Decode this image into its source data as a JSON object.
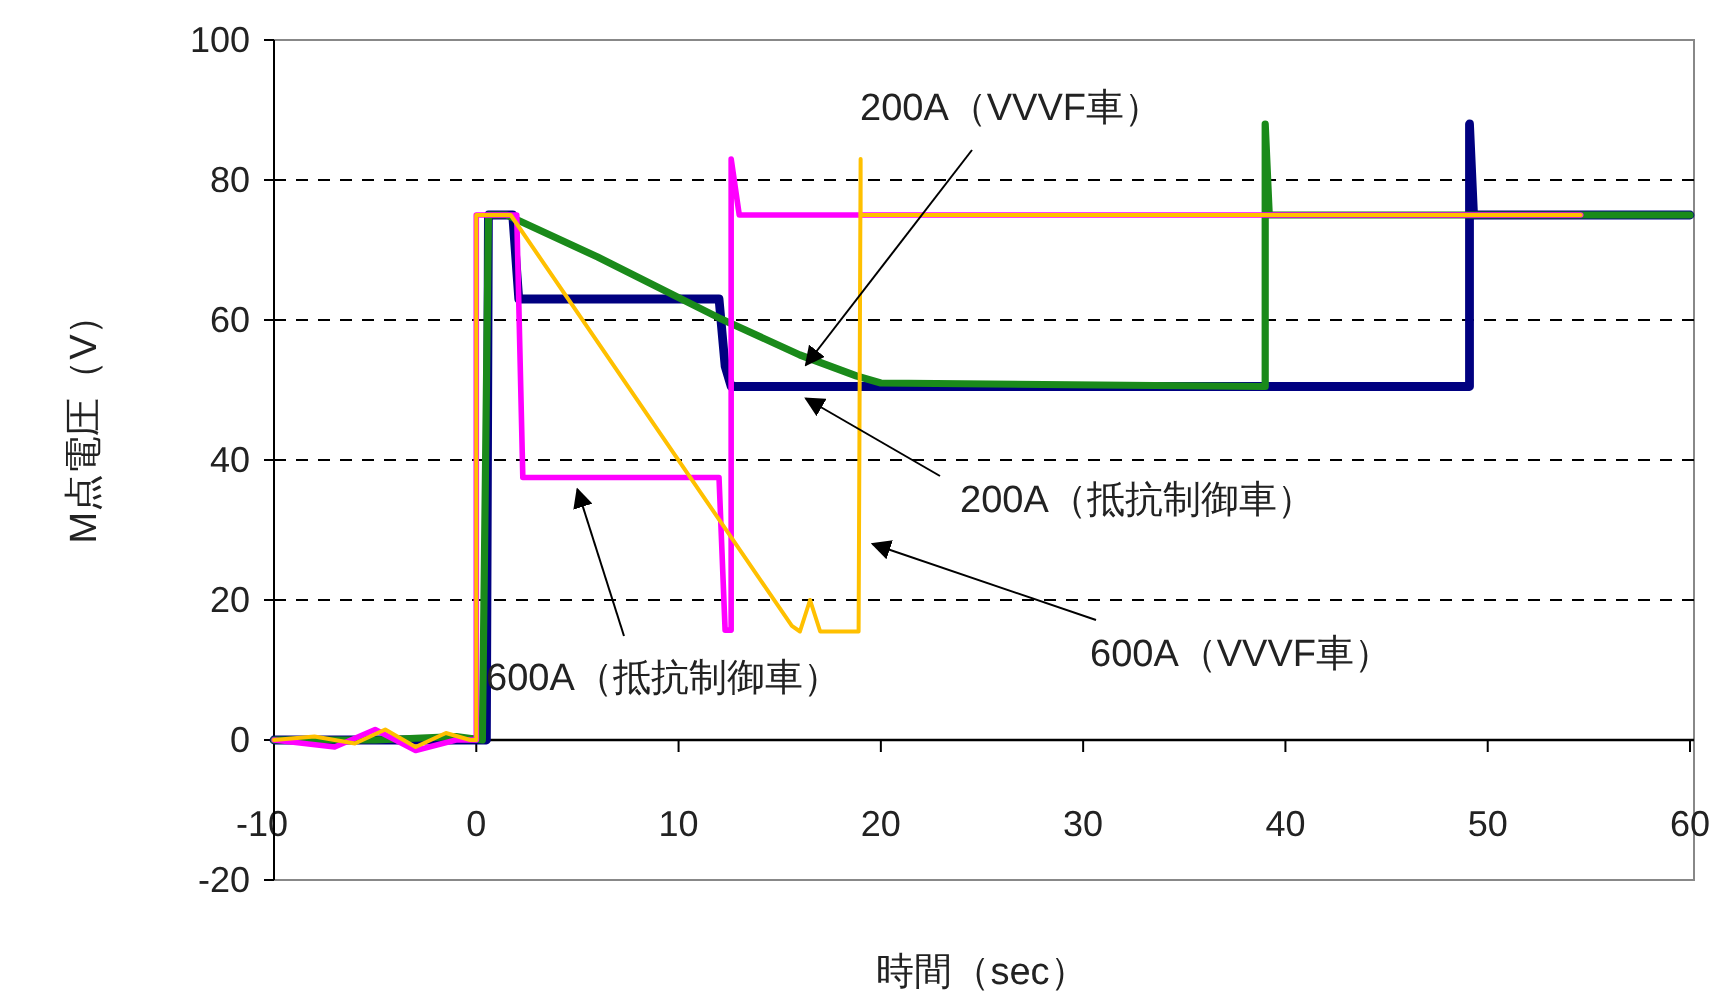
{
  "chart_data": {
    "type": "line",
    "xlabel": "時間（sec）",
    "ylabel": "M点電圧（V）",
    "xlim": [
      -10,
      60
    ],
    "ylim": [
      -20,
      100
    ],
    "xticks": [
      -10,
      0,
      10,
      20,
      30,
      40,
      50,
      60
    ],
    "yticks": [
      -20,
      0,
      20,
      40,
      60,
      80,
      100
    ],
    "grid": "y",
    "series": [
      {
        "color": "#000080",
        "x": [
          -10,
          0.5,
          0.6,
          1.8,
          2.1,
          12,
          12.3,
          12.6,
          13,
          49.1,
          49.1,
          49.3,
          60
        ],
        "values": [
          0,
          0,
          75,
          75,
          63,
          63,
          53.4,
          50.5,
          50.5,
          50.5,
          88,
          75,
          75
        ]
      },
      {
        "color": "#1a8a1a",
        "x": [
          -10,
          -5,
          -1,
          0.3,
          0.6,
          1.5,
          6,
          12,
          16,
          18.8,
          20,
          39,
          39,
          39.2,
          60
        ],
        "values": [
          0,
          0,
          0.5,
          0,
          75,
          75,
          69,
          60.3,
          55,
          52,
          51,
          50.5,
          88,
          75,
          75
        ]
      },
      {
        "color": "#ff00ff",
        "x": [
          -10,
          -7,
          -5,
          -3,
          -1,
          0,
          0,
          2,
          2.3,
          12,
          12.3,
          12.6,
          12.6,
          13,
          54.6
        ],
        "values": [
          0,
          -1,
          1.5,
          -1.5,
          0,
          0,
          75,
          75,
          37.5,
          37.5,
          15.7,
          15.7,
          83,
          75,
          75
        ]
      },
      {
        "color": "#ffc000",
        "x": [
          -10,
          -8,
          -6,
          -4.5,
          -3,
          -1.5,
          -0.3,
          0,
          0,
          1.7,
          15.6,
          16,
          16.5,
          17,
          18.9,
          19,
          19,
          19.5,
          54.6
        ],
        "values": [
          0,
          0.5,
          -0.5,
          1.5,
          -1,
          1,
          0,
          0,
          75,
          75,
          16.3,
          15.5,
          20,
          15.5,
          15.5,
          83,
          75,
          75,
          75
        ]
      }
    ],
    "annotations": [
      {
        "text": "200A（VVVF車）",
        "x": 16,
        "y": 55
      },
      {
        "text": "200A（抵抗制御車）",
        "x": 16,
        "y": 50.5
      },
      {
        "text": "600A（抵抗制御車）",
        "x": 5,
        "y": 37.5
      },
      {
        "text": "600A（VVVF車）",
        "x": 19,
        "y": 28
      }
    ]
  }
}
